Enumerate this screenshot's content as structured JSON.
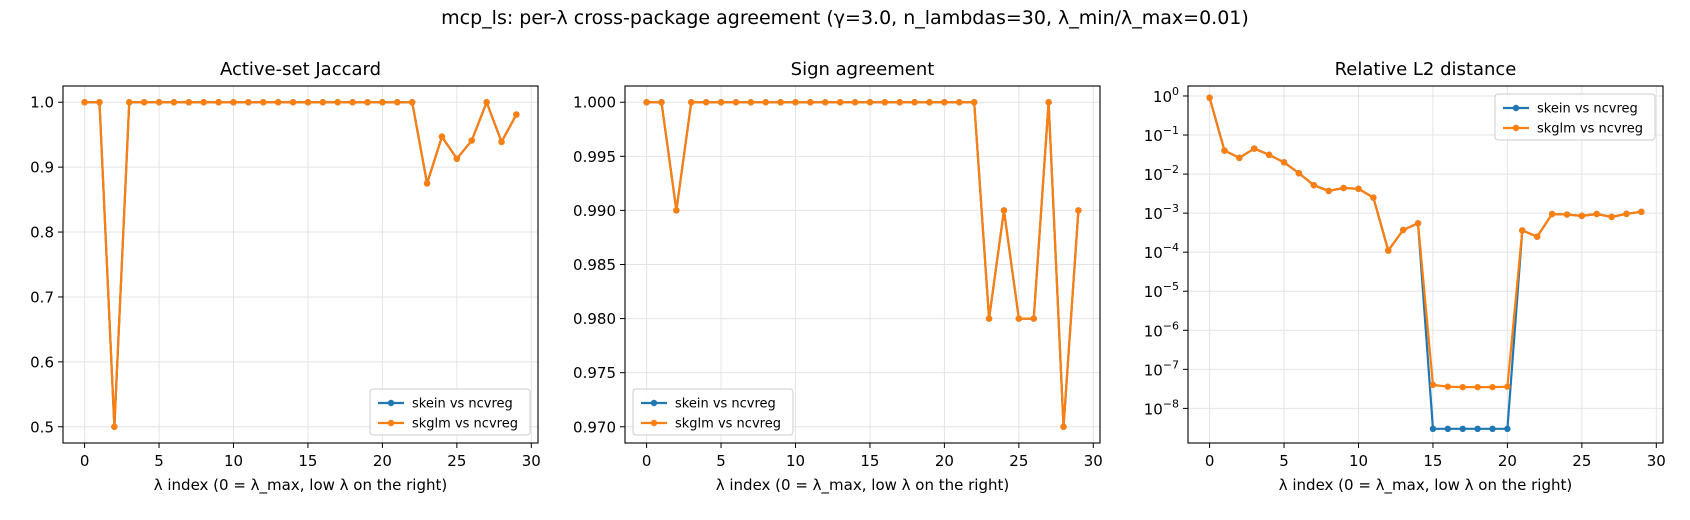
{
  "suptitle": "mcp_ls: per-λ cross-package agreement (γ=3.0, n_lambdas=30, λ_min/λ_max=0.01)",
  "colors": {
    "series_1": "#1f77b4",
    "series_2": "#ff7f0e",
    "grid": "#e4e4e4",
    "axes": "#000000"
  },
  "chart_data": [
    {
      "type": "line",
      "title": "Active-set Jaccard",
      "xlabel": "λ index (0 = λ_max, low λ on the right)",
      "ylabel": "",
      "xlim": [
        -1.45,
        30.45
      ],
      "ylim": [
        0.475,
        1.025
      ],
      "yscale": "linear",
      "xticks": [
        0,
        5,
        10,
        15,
        20,
        25,
        30
      ],
      "yticks": [
        0.5,
        0.6,
        0.7,
        0.8,
        0.9,
        1.0
      ],
      "ytick_labels": [
        "0.5",
        "0.6",
        "0.7",
        "0.8",
        "0.9",
        "1.0"
      ],
      "grid": true,
      "legend_position": "lower-right",
      "x": [
        0,
        1,
        2,
        3,
        4,
        5,
        6,
        7,
        8,
        9,
        10,
        11,
        12,
        13,
        14,
        15,
        16,
        17,
        18,
        19,
        20,
        21,
        22,
        23,
        24,
        25,
        26,
        27,
        28,
        29
      ],
      "series": [
        {
          "name": "skein vs ncvreg",
          "color": "#1f77b4",
          "values": [
            1.0,
            1.0,
            0.5,
            1.0,
            1.0,
            1.0,
            1.0,
            1.0,
            1.0,
            1.0,
            1.0,
            1.0,
            1.0,
            1.0,
            1.0,
            1.0,
            1.0,
            1.0,
            1.0,
            1.0,
            1.0,
            1.0,
            1.0,
            0.875,
            0.947,
            0.913,
            0.941,
            1.0,
            0.939,
            0.981
          ]
        },
        {
          "name": "skglm vs ncvreg",
          "color": "#ff7f0e",
          "values": [
            1.0,
            1.0,
            0.5,
            1.0,
            1.0,
            1.0,
            1.0,
            1.0,
            1.0,
            1.0,
            1.0,
            1.0,
            1.0,
            1.0,
            1.0,
            1.0,
            1.0,
            1.0,
            1.0,
            1.0,
            1.0,
            1.0,
            1.0,
            0.875,
            0.947,
            0.913,
            0.941,
            1.0,
            0.939,
            0.981
          ]
        }
      ]
    },
    {
      "type": "line",
      "title": "Sign agreement",
      "xlabel": "λ index (0 = λ_max, low λ on the right)",
      "ylabel": "",
      "xlim": [
        -1.45,
        30.45
      ],
      "ylim": [
        0.9685,
        1.0015
      ],
      "yscale": "linear",
      "xticks": [
        0,
        5,
        10,
        15,
        20,
        25,
        30
      ],
      "yticks": [
        0.97,
        0.975,
        0.98,
        0.985,
        0.99,
        0.995,
        1.0
      ],
      "ytick_labels": [
        "0.970",
        "0.975",
        "0.980",
        "0.985",
        "0.990",
        "0.995",
        "1.000"
      ],
      "grid": true,
      "legend_position": "lower-left",
      "x": [
        0,
        1,
        2,
        3,
        4,
        5,
        6,
        7,
        8,
        9,
        10,
        11,
        12,
        13,
        14,
        15,
        16,
        17,
        18,
        19,
        20,
        21,
        22,
        23,
        24,
        25,
        26,
        27,
        28,
        29
      ],
      "series": [
        {
          "name": "skein vs ncvreg",
          "color": "#1f77b4",
          "values": [
            1.0,
            1.0,
            0.99,
            1.0,
            1.0,
            1.0,
            1.0,
            1.0,
            1.0,
            1.0,
            1.0,
            1.0,
            1.0,
            1.0,
            1.0,
            1.0,
            1.0,
            1.0,
            1.0,
            1.0,
            1.0,
            1.0,
            1.0,
            0.98,
            0.99,
            0.98,
            0.98,
            1.0,
            0.97,
            0.99
          ]
        },
        {
          "name": "skglm vs ncvreg",
          "color": "#ff7f0e",
          "values": [
            1.0,
            1.0,
            0.99,
            1.0,
            1.0,
            1.0,
            1.0,
            1.0,
            1.0,
            1.0,
            1.0,
            1.0,
            1.0,
            1.0,
            1.0,
            1.0,
            1.0,
            1.0,
            1.0,
            1.0,
            1.0,
            1.0,
            1.0,
            0.98,
            0.99,
            0.98,
            0.98,
            1.0,
            0.97,
            0.99
          ]
        }
      ]
    },
    {
      "type": "line",
      "title": "Relative L2 distance",
      "xlabel": "λ index (0 = λ_max, low λ on the right)",
      "ylabel": "",
      "xlim": [
        -1.45,
        30.45
      ],
      "ylim": [
        1.3e-09,
        1.8
      ],
      "yscale": "log",
      "xticks": [
        0,
        5,
        10,
        15,
        20,
        25,
        30
      ],
      "yticks": [
        1e-08,
        1e-07,
        1e-06,
        1e-05,
        0.0001,
        0.001,
        0.01,
        0.1,
        1
      ],
      "ytick_labels": [
        {
          "base": "10",
          "exp": "−8"
        },
        {
          "base": "10",
          "exp": "−7"
        },
        {
          "base": "10",
          "exp": "−6"
        },
        {
          "base": "10",
          "exp": "−5"
        },
        {
          "base": "10",
          "exp": "−4"
        },
        {
          "base": "10",
          "exp": "−3"
        },
        {
          "base": "10",
          "exp": "−2"
        },
        {
          "base": "10",
          "exp": "−1"
        },
        {
          "base": "10",
          "exp": "0"
        }
      ],
      "grid": true,
      "legend_position": "upper-right",
      "x": [
        0,
        1,
        2,
        3,
        4,
        5,
        6,
        7,
        8,
        9,
        10,
        11,
        12,
        13,
        14,
        15,
        16,
        17,
        18,
        19,
        20,
        21,
        22,
        23,
        24,
        25,
        26,
        27,
        28,
        29
      ],
      "series": [
        {
          "name": "skein vs ncvreg",
          "color": "#1f77b4",
          "values": [
            0.9,
            0.04,
            0.026,
            0.045,
            0.031,
            0.02,
            0.0105,
            0.0052,
            0.0037,
            0.0044,
            0.0042,
            0.0025,
            0.00011,
            0.00037,
            0.00055,
            3e-09,
            3e-09,
            3e-09,
            3e-09,
            3e-09,
            3e-09,
            0.00036,
            0.00025,
            0.00095,
            0.00092,
            0.00085,
            0.00095,
            0.0008,
            0.00096,
            0.00108
          ]
        },
        {
          "name": "skglm vs ncvreg",
          "color": "#ff7f0e",
          "values": [
            0.9,
            0.04,
            0.026,
            0.045,
            0.031,
            0.02,
            0.0105,
            0.0052,
            0.0037,
            0.0044,
            0.0042,
            0.0025,
            0.00011,
            0.00037,
            0.00055,
            4e-08,
            3.6e-08,
            3.5e-08,
            3.5e-08,
            3.5e-08,
            3.6e-08,
            0.00036,
            0.00025,
            0.00095,
            0.00092,
            0.00085,
            0.00095,
            0.0008,
            0.00096,
            0.00108
          ]
        }
      ]
    }
  ]
}
